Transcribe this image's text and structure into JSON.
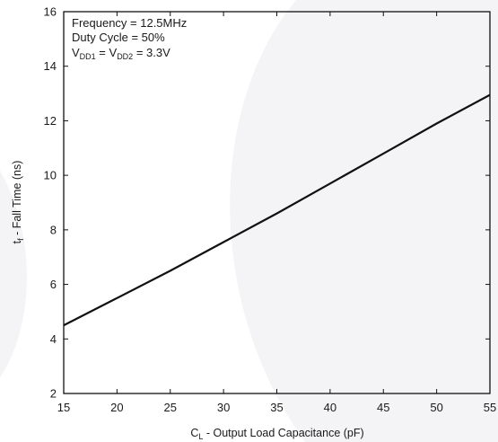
{
  "chart_data": {
    "type": "line",
    "title": "",
    "xlabel": {
      "main": "C",
      "sub": "L",
      "rest": " - Output Load Capacitance (pF)"
    },
    "ylabel": {
      "main": "t",
      "sub": "f",
      "rest": " - Fall Time (ns)"
    },
    "xlim": [
      15,
      55
    ],
    "ylim": [
      2,
      16
    ],
    "xticks": [
      15,
      20,
      25,
      30,
      35,
      40,
      45,
      50,
      55
    ],
    "yticks": [
      2,
      4,
      6,
      8,
      10,
      12,
      14,
      16
    ],
    "grid": false,
    "series": [
      {
        "x": [
          15,
          20,
          25,
          30,
          35,
          40,
          45,
          50,
          55
        ],
        "y": [
          4.5,
          5.5,
          6.5,
          7.55,
          8.6,
          9.7,
          10.8,
          11.9,
          12.95
        ]
      }
    ],
    "annotations": {
      "line1": "Frequency = 12.5MHz",
      "line2": "Duty Cycle = 50%",
      "line3": {
        "a": "V",
        "a_sub": "DD1",
        "eq": " = V",
        "b_sub": "DD2",
        "tail": " = 3.3V"
      }
    },
    "colors": {
      "line": "#111111",
      "axes": "#111111",
      "background_arc": "#f2f2f6"
    }
  }
}
